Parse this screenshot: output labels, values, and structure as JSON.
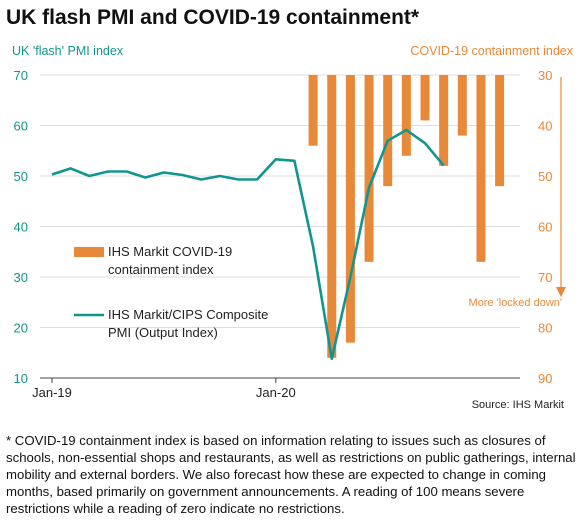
{
  "title": "UK flash PMI and COVID-19 containment*",
  "chart_data": {
    "type": "bar+line",
    "left_axis_title": "UK 'flash' PMI index",
    "right_axis_title": "COVID-19 containment index",
    "left_ticks": [
      70,
      60,
      50,
      40,
      30,
      20,
      10
    ],
    "right_ticks": [
      30,
      40,
      50,
      60,
      70,
      80,
      90
    ],
    "x_tick_labels": [
      "Jan-19",
      "Jan-20"
    ],
    "ylim_left": [
      10,
      70
    ],
    "ylim_right": [
      90,
      30
    ],
    "right_axis_inverted": true,
    "arrow_label": "More 'locked down'",
    "legend": [
      "IHS Markit COVID-19\ncontainment index",
      "IHS Markit/CIPS Composite\nPMI (Output Index)"
    ],
    "pmi_series": {
      "name": "IHS Markit/CIPS Composite PMI (Output Index)",
      "color": "#12958e",
      "x": [
        "Jan-19",
        "Feb-19",
        "Mar-19",
        "Apr-19",
        "May-19",
        "Jun-19",
        "Jul-19",
        "Aug-19",
        "Sep-19",
        "Oct-19",
        "Nov-19",
        "Dec-19",
        "Jan-20",
        "Feb-20",
        "Mar-20",
        "Apr-20",
        "May-20",
        "Jun-20",
        "Jul-20",
        "Aug-20",
        "Sep-20",
        "Oct-20"
      ],
      "values": [
        50.3,
        51.5,
        50.0,
        50.9,
        50.9,
        49.7,
        50.7,
        50.2,
        49.3,
        50.0,
        49.3,
        49.3,
        53.3,
        53.0,
        36.0,
        13.8,
        30.0,
        47.7,
        57.0,
        59.1,
        56.5,
        52.1
      ]
    },
    "containment_series": {
      "name": "IHS Markit COVID-19 containment index",
      "color": "#e8893a",
      "x": [
        "Mar-20",
        "Apr-20",
        "May-20",
        "Jun-20",
        "Jul-20",
        "Aug-20",
        "Sep-20",
        "Oct-20",
        "Nov-20",
        "Dec-20",
        "Jan-21",
        "Feb-21"
      ],
      "values": [
        44,
        86,
        83,
        67,
        52,
        46,
        39,
        48,
        42,
        67,
        52,
        30
      ]
    }
  },
  "source": "Source: IHS Markit",
  "footnote": "* COVID-19 containment index is based on information relating to issues such as closures of schools, non-essential shops and restaurants, as well as restrictions on public gatherings, internal mobility and external borders. We also forecast how these are expected to change in coming months, based primarily on government announcements. A reading of 100 means severe restrictions while a reading of zero indicate no restrictions."
}
